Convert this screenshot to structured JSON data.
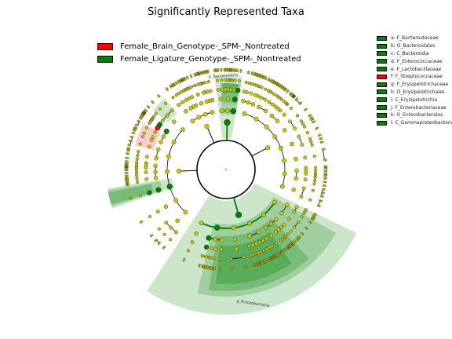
{
  "chart_data": {
    "type": "cladogram",
    "title": "Significantly Represented Taxa",
    "legend": [
      {
        "name": "Female_Brain_Genotype-_SPM-_Nontreated",
        "color": "#ff0000"
      },
      {
        "name": "Female_Ligature_Genotype-_SPM-_Nontreated",
        "color": "#008000"
      }
    ],
    "taxa_key": [
      {
        "letter": "a",
        "label": "a: F_Bacteroidaceae",
        "group": "Ligature"
      },
      {
        "letter": "b",
        "label": "b: O_Bacteroidales",
        "group": "Ligature"
      },
      {
        "letter": "c",
        "label": "c: C_Bacteroidia",
        "group": "Ligature"
      },
      {
        "letter": "d",
        "label": "d: F_Enterococcaceae",
        "group": "Ligature"
      },
      {
        "letter": "e",
        "label": "e: F_Lactobacillaceae",
        "group": "Ligature"
      },
      {
        "letter": "f",
        "label": "f: F_Streptococcaceae",
        "group": "Brain"
      },
      {
        "letter": "g",
        "label": "g: F_Erysipelotrichaceae",
        "group": "Ligature"
      },
      {
        "letter": "h",
        "label": "h: O_Erysipelotrichales",
        "group": "Ligature"
      },
      {
        "letter": "i",
        "label": "i: C_Erysipelotrichia",
        "group": "Ligature"
      },
      {
        "letter": "j",
        "label": "j: F_Enterobacteriaceae",
        "group": "Ligature"
      },
      {
        "letter": "k",
        "label": "k: O_Enterobacterales",
        "group": "Ligature"
      },
      {
        "letter": "l",
        "label": "l: C_Gammaproteobacteria",
        "group": "Ligature"
      }
    ],
    "clade_labels": [
      {
        "text": "p_Bacteroidota",
        "group": "Ligature"
      },
      {
        "text": "p_Proteobacteria",
        "group": "Ligature"
      }
    ],
    "colors": {
      "brain": "#ff0000",
      "ligature": "#008000",
      "neutral_node": "#c8c800",
      "edge": "#000000"
    }
  }
}
